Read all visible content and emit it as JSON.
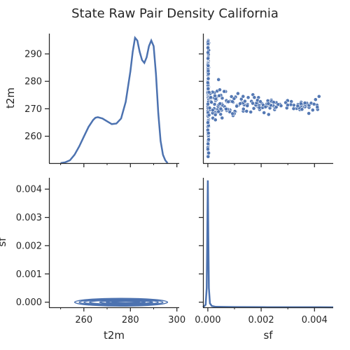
{
  "chart_data": {
    "title": "State Raw Pair Density California",
    "type": "pairgrid",
    "color": "#4c72b0",
    "variables": [
      "t2m",
      "sf"
    ],
    "panels": [
      {
        "row": "t2m",
        "col": "t2m",
        "type": "kde",
        "xlim": [
          245,
          301
        ],
        "curve": [
          [
            250,
            0.0
          ],
          [
            252,
            0.003
          ],
          [
            254,
            0.01
          ],
          [
            256,
            0.03
          ],
          [
            258,
            0.06
          ],
          [
            260,
            0.095
          ],
          [
            262,
            0.13
          ],
          [
            264,
            0.155
          ],
          [
            265,
            0.163
          ],
          [
            266,
            0.165
          ],
          [
            268,
            0.16
          ],
          [
            270,
            0.15
          ],
          [
            272,
            0.14
          ],
          [
            274,
            0.142
          ],
          [
            276,
            0.16
          ],
          [
            278,
            0.22
          ],
          [
            280,
            0.33
          ],
          [
            281,
            0.4
          ],
          [
            282,
            0.45
          ],
          [
            283,
            0.44
          ],
          [
            284,
            0.4
          ],
          [
            285,
            0.37
          ],
          [
            286,
            0.36
          ],
          [
            287,
            0.38
          ],
          [
            288,
            0.42
          ],
          [
            289,
            0.44
          ],
          [
            290,
            0.42
          ],
          [
            291,
            0.32
          ],
          [
            292,
            0.18
          ],
          [
            293,
            0.08
          ],
          [
            294,
            0.03
          ],
          [
            295,
            0.01
          ],
          [
            296,
            0.0
          ]
        ]
      },
      {
        "row": "t2m",
        "col": "sf",
        "type": "scatter",
        "xlim": [
          -0.00018,
          0.0047
        ],
        "ylim": [
          250.2,
          297.4
        ]
      },
      {
        "row": "sf",
        "col": "t2m",
        "type": "kde2d",
        "xlim": [
          245,
          301
        ],
        "ylim": [
          -0.00018,
          0.0044
        ],
        "center_y": 0.0,
        "x_extent": [
          256,
          296
        ]
      },
      {
        "row": "sf",
        "col": "sf",
        "type": "kde",
        "xlim": [
          -0.00018,
          0.0047
        ],
        "curve": [
          [
            -0.00018,
            0.0
          ],
          [
            -8e-05,
            0.02
          ],
          [
            -4e-05,
            0.15
          ],
          [
            -2e-05,
            0.55
          ],
          [
            0.0,
            0.98
          ],
          [
            2e-05,
            0.55
          ],
          [
            4e-05,
            0.15
          ],
          [
            8e-05,
            0.03
          ],
          [
            0.00015,
            0.01
          ],
          [
            0.0003,
            0.004
          ],
          [
            0.001,
            0.002
          ],
          [
            0.002,
            0.001
          ],
          [
            0.003,
            0.0007
          ],
          [
            0.0042,
            0.0004
          ],
          [
            0.0047,
            0.0
          ]
        ]
      }
    ],
    "axes": {
      "t2m_row_yticks": [
        "260",
        "270",
        "280",
        "290"
      ],
      "t2m_row_yvals": [
        260,
        270,
        280,
        290
      ],
      "sf_row_yticks": [
        "0.000",
        "0.001",
        "0.002",
        "0.003",
        "0.004"
      ],
      "sf_row_yvals": [
        0.0,
        0.001,
        0.002,
        0.003,
        0.004
      ],
      "t2m_col_xticks": [
        "260",
        "280",
        "300"
      ],
      "t2m_col_xvals": [
        260,
        280,
        300
      ],
      "t2m_col_minor_xvals": [
        250,
        270,
        290
      ],
      "sf_col_xticks": [
        "0.000",
        "0.002",
        "0.004"
      ],
      "sf_col_xvals": [
        0.0,
        0.002,
        0.004
      ],
      "sf_col_minor_xvals": [
        0.001,
        0.003
      ],
      "xlabels": [
        "t2m",
        "sf"
      ],
      "ylabels": [
        "t2m",
        "sf"
      ]
    }
  }
}
